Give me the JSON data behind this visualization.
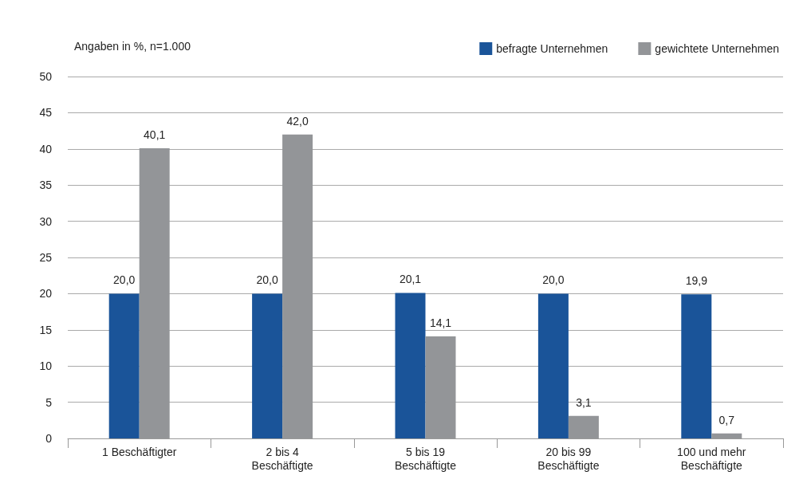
{
  "chart_data": {
    "type": "bar",
    "ylabel": "Angaben in %, n=1.000",
    "categories": [
      "1 Beschäftigter",
      "2 bis 4\nBeschäftigte",
      "5 bis 19\nBeschäftigte",
      "20 bis 99\nBeschäftigte",
      "100 und mehr\nBeschäftigte"
    ],
    "series": [
      {
        "name": "befragte Unternehmen",
        "color": "#1a5499",
        "values": [
          20.0,
          20.0,
          20.1,
          20.0,
          19.9
        ],
        "value_labels": [
          "20,0",
          "20,0",
          "20,1",
          "20,0",
          "19,9"
        ]
      },
      {
        "name": "gewichtete Unternehmen",
        "color": "#939598",
        "values": [
          40.1,
          42.0,
          14.1,
          3.1,
          0.7
        ],
        "value_labels": [
          "40,1",
          "42,0",
          "14,1",
          "3,1",
          "0,7"
        ]
      }
    ],
    "ylim": [
      0,
      50
    ],
    "yticks": [
      0,
      5,
      10,
      15,
      20,
      25,
      30,
      35,
      40,
      45,
      50
    ],
    "grid": "y",
    "legend": "top right"
  }
}
